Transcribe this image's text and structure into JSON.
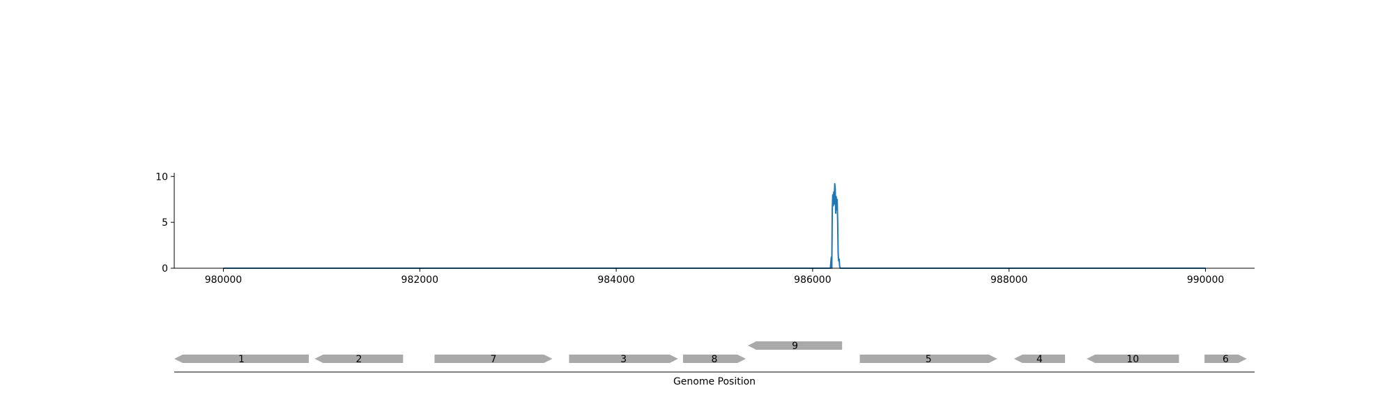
{
  "chart_data": [
    {
      "type": "line",
      "title": "",
      "xlabel": "",
      "ylabel": "",
      "xlim": [
        979500,
        990500
      ],
      "ylim": [
        0,
        10.4
      ],
      "x_ticks": [
        980000,
        982000,
        984000,
        986000,
        988000,
        990000
      ],
      "x_tick_labels": [
        "980000",
        "982000",
        "984000",
        "986000",
        "988000",
        "990000"
      ],
      "y_ticks": [
        0,
        5,
        10
      ],
      "y_tick_labels": [
        "0",
        "5",
        "10"
      ],
      "grid": false,
      "legend": "none",
      "series": [
        {
          "color": "#1f77b4",
          "x": [
            980000,
            986180,
            986190,
            986195,
            986200,
            986205,
            986210,
            986215,
            986220,
            986225,
            986230,
            986235,
            986240,
            986245,
            986250,
            986255,
            986260,
            986265,
            986270,
            986275,
            986280,
            986290,
            990000
          ],
          "y": [
            0,
            0,
            1.2,
            0,
            6.5,
            8.0,
            6.8,
            8.3,
            7.0,
            9.2,
            8.6,
            6.0,
            7.8,
            6.4,
            7.5,
            5.0,
            1.5,
            0.8,
            1.0,
            0.2,
            0,
            0,
            0
          ]
        }
      ]
    },
    {
      "type": "gene_track",
      "xlabel": "Genome Position",
      "xlim": [
        979500,
        990500
      ],
      "color": "#a9a9a9",
      "features": [
        {
          "label": "1",
          "start": 979500,
          "end": 980870,
          "strand": "-",
          "row": 0
        },
        {
          "label": "2",
          "start": 980930,
          "end": 981830,
          "strand": "-",
          "row": 0
        },
        {
          "label": "7",
          "start": 982150,
          "end": 983350,
          "strand": "+",
          "row": 0
        },
        {
          "label": "3",
          "start": 983520,
          "end": 984630,
          "strand": "+",
          "row": 0
        },
        {
          "label": "8",
          "start": 984680,
          "end": 985320,
          "strand": "+",
          "row": 0
        },
        {
          "label": "9",
          "start": 985340,
          "end": 986300,
          "strand": "-",
          "row": 1
        },
        {
          "label": "5",
          "start": 986480,
          "end": 987880,
          "strand": "+",
          "row": 0
        },
        {
          "label": "4",
          "start": 988050,
          "end": 988570,
          "strand": "-",
          "row": 0
        },
        {
          "label": "10",
          "start": 988790,
          "end": 989730,
          "strand": "-",
          "row": 0
        },
        {
          "label": "6",
          "start": 989990,
          "end": 990420,
          "strand": "+",
          "row": 0
        }
      ]
    }
  ]
}
